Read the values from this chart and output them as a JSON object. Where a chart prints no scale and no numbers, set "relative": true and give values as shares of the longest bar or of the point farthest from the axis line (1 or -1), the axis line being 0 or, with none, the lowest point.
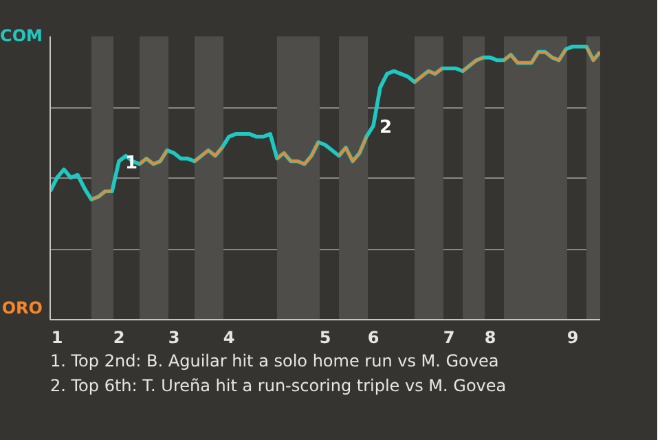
{
  "chart_data": {
    "type": "line",
    "relative": true,
    "categories": [
      null,
      "1",
      null,
      null,
      null,
      null,
      null,
      null,
      null,
      null,
      "2",
      null,
      null,
      null,
      null,
      null,
      null,
      null,
      "3",
      null,
      null,
      null,
      null,
      null,
      null,
      null,
      "4",
      null,
      null,
      null,
      null,
      null,
      null,
      null,
      null,
      null,
      null,
      null,
      null,
      null,
      "5",
      null,
      null,
      null,
      null,
      null,
      null,
      "6",
      null,
      null,
      null,
      null,
      null,
      null,
      null,
      null,
      null,
      null,
      "7",
      null,
      null,
      null,
      null,
      null,
      "8",
      null,
      null,
      null,
      null,
      null,
      null,
      null,
      null,
      null,
      null,
      null,
      "9",
      null,
      null,
      null,
      null
    ],
    "series": [
      {
        "color": "#1fc8c0",
        "values": [
          0.47,
          0.52,
          0.55,
          0.52,
          0.53,
          0.48,
          0.44,
          0.45,
          0.47,
          0.47,
          0.58,
          0.6,
          0.58,
          0.57,
          0.59,
          0.57,
          0.58,
          0.62,
          0.61,
          0.59,
          0.59,
          0.58,
          0.6,
          0.62,
          0.6,
          0.63,
          0.67,
          0.68,
          0.68,
          0.68,
          0.67,
          0.67,
          0.68,
          0.59,
          0.61,
          0.58,
          0.58,
          0.57,
          0.6,
          0.65,
          0.64,
          0.62,
          0.6,
          0.63,
          0.58,
          0.61,
          0.67,
          0.71,
          0.85,
          0.9,
          0.91,
          0.9,
          0.89,
          0.87,
          0.89,
          0.91,
          0.9,
          0.92,
          0.92,
          0.92,
          0.91,
          0.93,
          0.95,
          0.96,
          0.96,
          0.95,
          0.95,
          0.97,
          0.94,
          0.94,
          0.94,
          0.98,
          0.98,
          0.96,
          0.95,
          0.99,
          1,
          1,
          1,
          0.95,
          0.98
        ]
      },
      {
        "color": "#f5862a",
        "values": [
          null,
          null,
          null,
          null,
          null,
          null,
          0.44,
          0.45,
          0.47,
          0.47,
          null,
          null,
          null,
          0.57,
          0.59,
          0.57,
          0.58,
          0.62,
          null,
          null,
          null,
          0.58,
          0.6,
          0.62,
          0.6,
          0.63,
          null,
          null,
          null,
          null,
          null,
          null,
          null,
          0.59,
          0.61,
          0.58,
          0.58,
          0.57,
          0.6,
          0.65,
          null,
          null,
          0.6,
          0.63,
          0.58,
          0.61,
          0.67,
          null,
          null,
          null,
          null,
          null,
          null,
          0.87,
          0.89,
          0.91,
          0.9,
          0.92,
          null,
          null,
          0.91,
          0.93,
          0.95,
          0.96,
          null,
          null,
          0.95,
          0.97,
          0.94,
          0.94,
          0.94,
          0.98,
          0.98,
          0.96,
          0.95,
          0.99,
          null,
          null,
          1,
          0.95,
          0.98
        ]
      }
    ],
    "grid": "y",
    "annotations": [
      "COM",
      "ORO",
      {
        "text": "1",
        "x": "2"
      },
      {
        "text": "2",
        "x": "6"
      },
      "1. Top 2nd: B. Aguilar hit a solo home run vs M. Govea",
      "2. Top 6th: T. Ureña hit a run-scoring triple vs M. Govea"
    ]
  }
}
